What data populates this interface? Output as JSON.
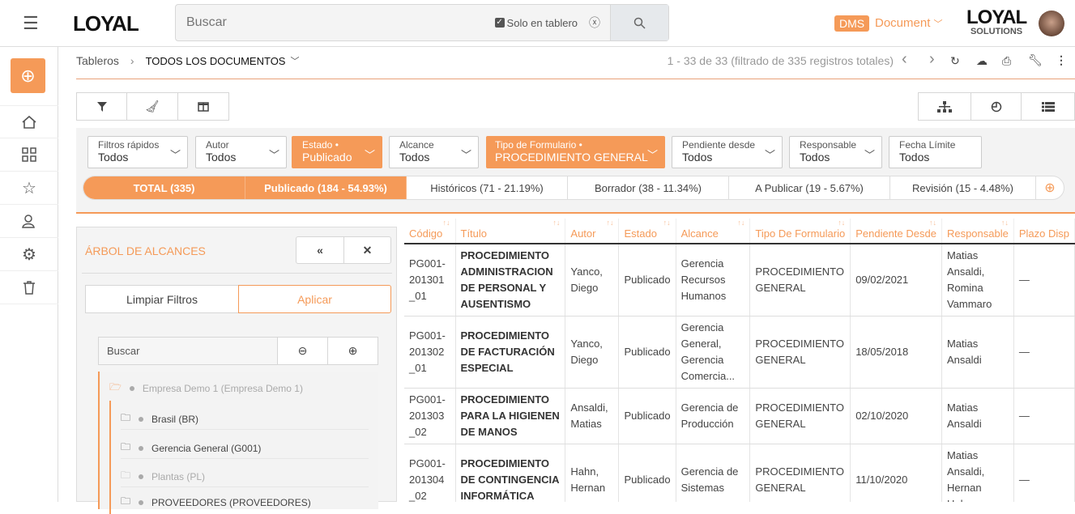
{
  "header": {
    "logo": "LOYAL",
    "search_placeholder": "Buscar",
    "solo_label": "Solo en tablero",
    "solo_checked": true,
    "dms_badge": "DMS",
    "module": "Document",
    "brand_top": "LOYAL",
    "brand_bottom": "SOLUTIONS"
  },
  "sidebar": {
    "items": [
      "add",
      "home",
      "dashboard",
      "favorites",
      "users",
      "settings",
      "trash"
    ]
  },
  "breadcrumb": {
    "root": "Tableros",
    "current": "TODOS LOS DOCUMENTOS"
  },
  "pagination": {
    "summary": "1 - 33 de 33 (filtrado de 335 registros totales)"
  },
  "filters": [
    {
      "label": "Filtros rápidos",
      "value": "Todos",
      "active": false
    },
    {
      "label": "Autor",
      "value": "Todos",
      "active": false
    },
    {
      "label": "Estado",
      "value": "Publicado",
      "active": true
    },
    {
      "label": "Alcance",
      "value": "Todos",
      "active": false
    },
    {
      "label": "Tipo de Formulario",
      "value": "PROCEDIMIENTO GENERAL",
      "active": true
    },
    {
      "label": "Pendiente desde",
      "value": "Todos",
      "active": false
    },
    {
      "label": "Responsable",
      "value": "Todos",
      "active": false
    },
    {
      "label": "Fecha Límite",
      "value": "Todos",
      "active": false
    }
  ],
  "stats": [
    "TOTAL (335)",
    "Publicado (184 - 54.93%)",
    "Históricos (71 - 21.19%)",
    "Borrador (38 - 11.34%)",
    "A Publicar (19 - 5.67%)",
    "Revisión (15 - 4.48%)"
  ],
  "tree": {
    "title": "ÁRBOL DE ALCANCES",
    "clear": "Limpiar Filtros",
    "apply": "Aplicar",
    "search_placeholder": "Buscar",
    "nodes": [
      "Empresa Demo 1 (Empresa Demo 1)",
      "Brasil (BR)",
      "Gerencia General (G001)",
      "Plantas (PL)",
      "PROVEEDORES (PROVEEDORES)"
    ]
  },
  "table": {
    "columns": [
      "Código",
      "Título",
      "Autor",
      "Estado",
      "Alcance",
      "Tipo De Formulario",
      "Pendiente Desde",
      "Responsable",
      "Plazo Disp"
    ],
    "rows": [
      [
        "PG001-201301_01",
        "PROCEDIMIENTO ADMINISTRACION DE PERSONAL Y AUSENTISMO",
        "Yanco, Diego",
        "Publicado",
        "Gerencia Recursos Humanos",
        "PROCEDIMIENTO GENERAL",
        "09/02/2021",
        "Matias Ansaldi, Romina Vammaro",
        "—"
      ],
      [
        "PG001-201302_01",
        "PROCEDIMIENTO DE FACTURACIÓN ESPECIAL",
        "Yanco, Diego",
        "Publicado",
        "Gerencia General, Gerencia Comercia...",
        "PROCEDIMIENTO GENERAL",
        "18/05/2018",
        "Matias Ansaldi",
        "—"
      ],
      [
        "PG001-201303_02",
        "PROCEDIMIENTO PARA LA HIGIENEN DE MANOS",
        "Ansaldi, Matias",
        "Publicado",
        "Gerencia de Producción",
        "PROCEDIMIENTO GENERAL",
        "02/10/2020",
        "Matias Ansaldi",
        "—"
      ],
      [
        "PG001-201304_02",
        "PROCEDIMIENTO DE CONTINGENCIA INFORMÁTICA",
        "Hahn, Hernan",
        "Publicado",
        "Gerencia de Sistemas",
        "PROCEDIMIENTO GENERAL",
        "11/10/2020",
        "Matias Ansaldi, Hernan Hahn",
        "—"
      ]
    ]
  },
  "colors": {
    "accent": "#f59a58"
  }
}
